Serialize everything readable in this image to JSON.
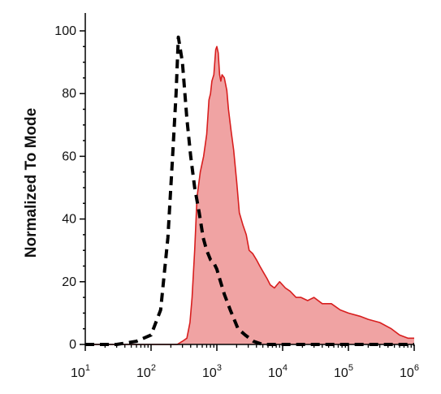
{
  "chart_data": {
    "type": "area",
    "title": "",
    "xlabel": "",
    "ylabel": "Normalized To Mode",
    "x_scale": "log",
    "xlim": [
      10,
      1000000
    ],
    "ylim": [
      0,
      100
    ],
    "x_ticks": [
      {
        "base": "10",
        "exp": "1",
        "value": 10
      },
      {
        "base": "10",
        "exp": "2",
        "value": 100
      },
      {
        "base": "10",
        "exp": "3",
        "value": 1000
      },
      {
        "base": "10",
        "exp": "4",
        "value": 10000
      },
      {
        "base": "10",
        "exp": "5",
        "value": 100000
      },
      {
        "base": "10",
        "exp": "6",
        "value": 1000000
      }
    ],
    "y_ticks": [
      {
        "label": "0",
        "value": 0
      },
      {
        "label": "20",
        "value": 20
      },
      {
        "label": "40",
        "value": 40
      },
      {
        "label": "60",
        "value": 60
      },
      {
        "label": "80",
        "value": 80
      },
      {
        "label": "100",
        "value": 100
      }
    ],
    "grid": false,
    "legend": "none",
    "series": [
      {
        "style": "dashed-black-line",
        "color": "#000000",
        "x": [
          10,
          30,
          60,
          100,
          140,
          180,
          210,
          240,
          260,
          300,
          350,
          400,
          460,
          540,
          620,
          700,
          800,
          900,
          1000,
          1100,
          1300,
          1600,
          2100,
          2700,
          3600,
          5000,
          8000,
          100000,
          1000000
        ],
        "y": [
          0,
          0,
          1,
          3,
          11,
          34,
          58,
          80,
          98,
          90,
          72,
          60,
          50,
          42,
          34,
          30,
          27,
          26,
          24,
          21,
          16,
          11,
          5,
          3,
          1,
          0,
          0,
          0,
          0
        ]
      },
      {
        "style": "filled-red-area",
        "color": "#d81e1e",
        "fill": "#f0a3a3",
        "x": [
          10,
          100,
          170,
          250,
          300,
          350,
          390,
          420,
          460,
          500,
          560,
          630,
          700,
          760,
          800,
          840,
          900,
          960,
          1000,
          1050,
          1100,
          1150,
          1200,
          1300,
          1420,
          1500,
          1650,
          1800,
          2000,
          2200,
          2500,
          2800,
          3100,
          3500,
          4000,
          4500,
          5100,
          5800,
          6500,
          7500,
          9000,
          11000,
          13000,
          16000,
          19000,
          24000,
          30000,
          40000,
          55000,
          75000,
          100000,
          150000,
          200000,
          300000,
          450000,
          600000,
          800000,
          1000000
        ],
        "y": [
          0,
          0,
          0,
          0,
          1,
          2,
          7,
          15,
          30,
          47,
          55,
          60,
          67,
          78,
          80,
          84,
          86,
          94,
          95,
          93,
          86,
          84,
          86,
          85,
          81,
          75,
          68,
          62,
          52,
          42,
          38,
          35,
          30,
          29,
          27,
          25,
          23,
          21,
          19,
          18,
          20,
          18,
          17,
          15,
          15,
          14,
          15,
          13,
          13,
          11,
          10,
          9,
          8,
          7,
          5,
          3,
          2,
          2
        ]
      }
    ]
  }
}
